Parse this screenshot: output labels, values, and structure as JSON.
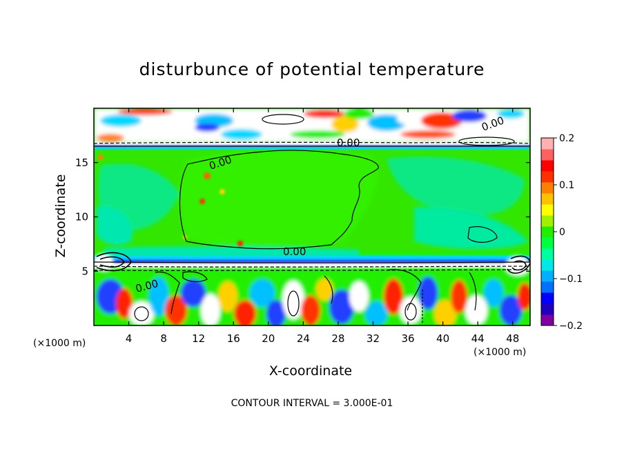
{
  "chart_data": {
    "type": "heatmap",
    "title": "disturbunce of potential temperature",
    "xlabel": "X-coordinate",
    "ylabel": "Z-coordinate",
    "x_unit": "(×1000 m)",
    "y_unit": "(×1000 m)",
    "xlim": [
      0,
      50
    ],
    "ylim": [
      0,
      20
    ],
    "xticks": [
      4,
      8,
      12,
      16,
      20,
      24,
      28,
      32,
      36,
      40,
      44,
      48
    ],
    "yticks": [
      5,
      10,
      15
    ],
    "colorbar": {
      "range": [
        -0.2,
        0.2
      ],
      "ticks": [
        0.2,
        0.1,
        0,
        -0.1,
        -0.2
      ],
      "tick_labels": [
        "0.2",
        "0.1",
        "0",
        "−0.1",
        "−0.2"
      ],
      "colors": [
        "#8000a0",
        "#2000c0",
        "#0000ff",
        "#0070ff",
        "#00b0ff",
        "#00e8e8",
        "#00ffa0",
        "#00ff40",
        "#20f000",
        "#a0f000",
        "#ffff00",
        "#ffc000",
        "#ff8000",
        "#ff3000",
        "#ff0000",
        "#ff6060",
        "#ffb0b0"
      ]
    },
    "contour_labels": [
      "0.00",
      "0.00",
      "0.00",
      "0.00",
      "0.00"
    ],
    "footer": "CONTOUR INTERVAL = 3.000E-01"
  }
}
